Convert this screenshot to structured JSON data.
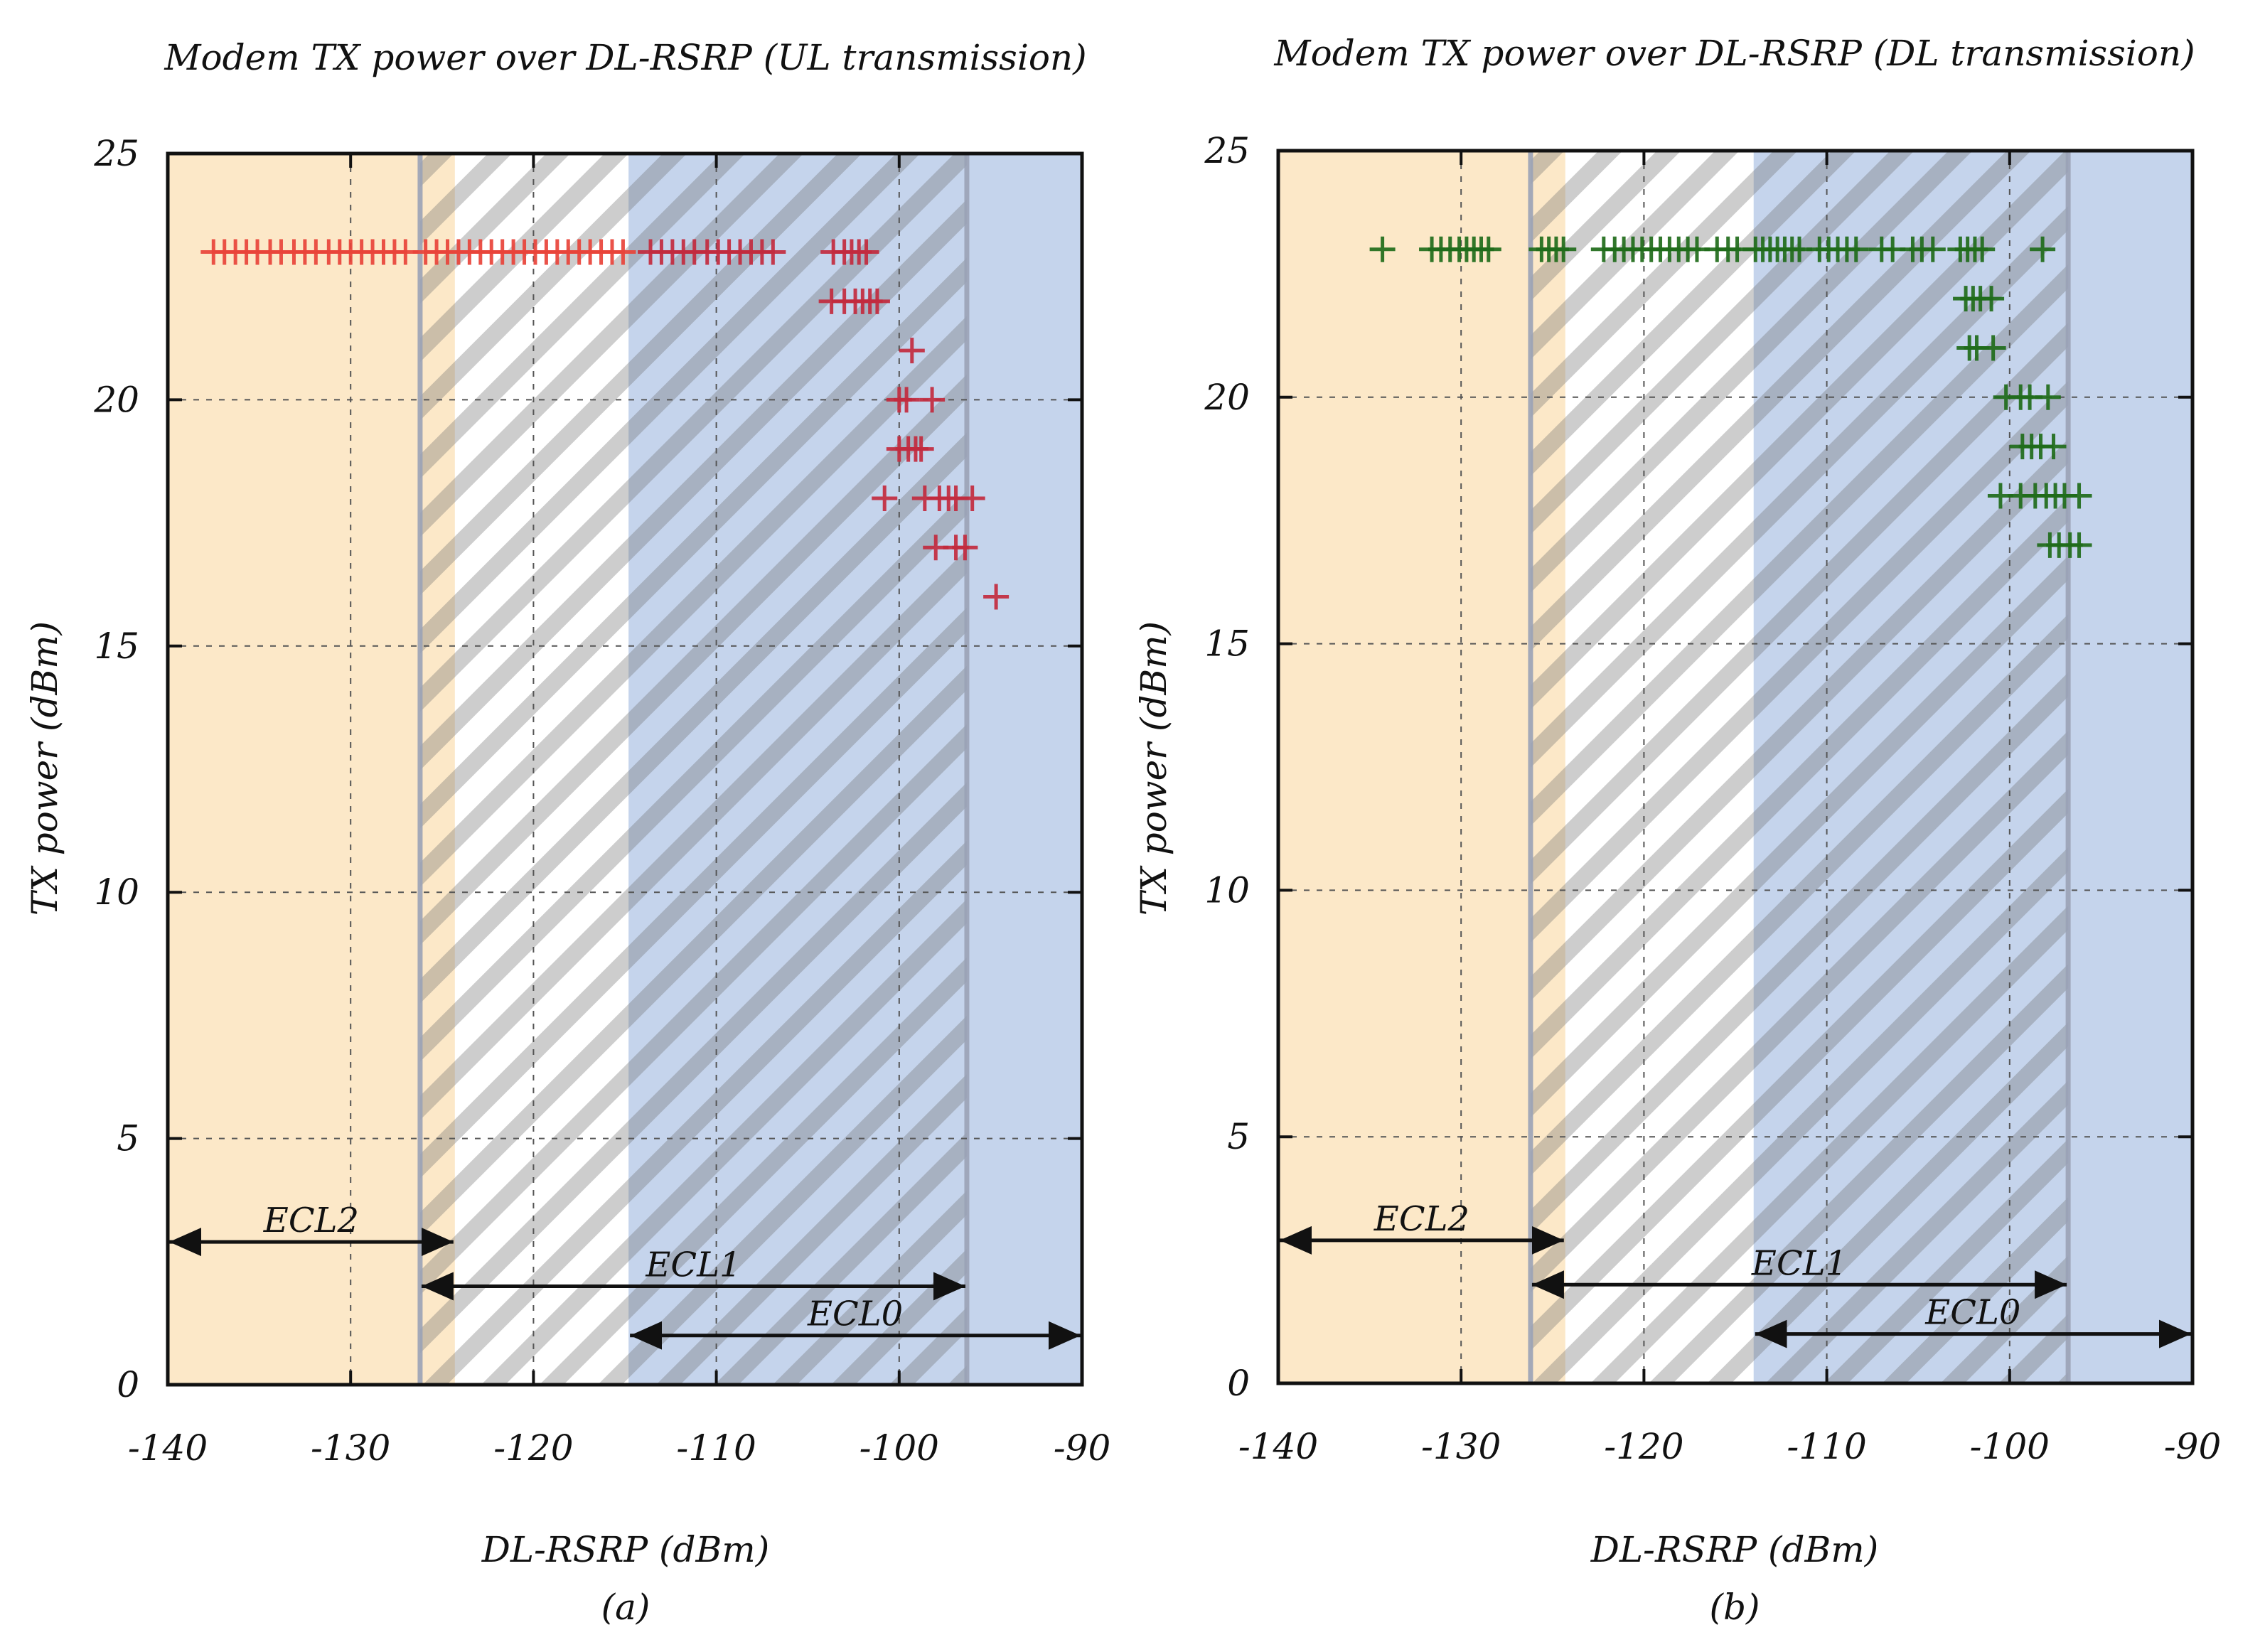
{
  "chart_data": [
    {
      "type": "scatter",
      "title": "Modem TX power over DL-RSRP (UL transmission)",
      "xlabel": "DL-RSRP (dBm)",
      "ylabel": "TX power (dBm)",
      "caption": "(a)",
      "xlim": [
        -140,
        -90
      ],
      "ylim": [
        0,
        25
      ],
      "xticks": [
        "-140",
        "-130",
        "-120",
        "-110",
        "-100",
        "-90"
      ],
      "yticks": [
        "0",
        "5",
        "10",
        "15",
        "20",
        "25"
      ],
      "grid": true,
      "marker": "+",
      "marker_color": "#e8433a",
      "marker_color_high": "#c22a3e",
      "ecl_regions": [
        {
          "name": "ECL2",
          "from": -140,
          "to": -124.3,
          "color": "#fce8c8"
        },
        {
          "name": "ECL1",
          "from": -126.2,
          "to": -96.3,
          "color": "#cccccc",
          "hatched": true
        },
        {
          "name": "ECL0",
          "from": -114.8,
          "to": -90,
          "color": "#c5d4ec"
        }
      ],
      "series": [
        {
          "name": "UL transmission",
          "points": [
            [
              -137.5,
              23
            ],
            [
              -136.9,
              23
            ],
            [
              -136.3,
              23
            ],
            [
              -135.7,
              23
            ],
            [
              -135.1,
              23
            ],
            [
              -134.4,
              23
            ],
            [
              -133.8,
              23
            ],
            [
              -133.1,
              23
            ],
            [
              -132.5,
              23
            ],
            [
              -131.9,
              23
            ],
            [
              -131.2,
              23
            ],
            [
              -130.6,
              23
            ],
            [
              -130.0,
              23
            ],
            [
              -129.4,
              23
            ],
            [
              -128.8,
              23
            ],
            [
              -128.2,
              23
            ],
            [
              -127.6,
              23
            ],
            [
              -127.0,
              23
            ],
            [
              -125.9,
              23
            ],
            [
              -125.3,
              23
            ],
            [
              -124.7,
              23
            ],
            [
              -124.1,
              23
            ],
            [
              -123.5,
              23
            ],
            [
              -122.9,
              23
            ],
            [
              -122.3,
              23
            ],
            [
              -121.7,
              23
            ],
            [
              -121.1,
              23
            ],
            [
              -120.5,
              23
            ],
            [
              -119.9,
              23
            ],
            [
              -119.3,
              23
            ],
            [
              -118.7,
              23
            ],
            [
              -118.1,
              23
            ],
            [
              -117.5,
              23
            ],
            [
              -116.9,
              23
            ],
            [
              -116.3,
              23
            ],
            [
              -115.7,
              23
            ],
            [
              -115.1,
              23
            ],
            [
              -113.6,
              23
            ],
            [
              -113.0,
              23
            ],
            [
              -112.4,
              23
            ],
            [
              -111.8,
              23
            ],
            [
              -111.2,
              23
            ],
            [
              -110.5,
              23
            ],
            [
              -109.9,
              23
            ],
            [
              -109.3,
              23
            ],
            [
              -108.7,
              23
            ],
            [
              -108.1,
              23
            ],
            [
              -107.5,
              23
            ],
            [
              -106.9,
              23
            ],
            [
              -103.6,
              23
            ],
            [
              -103.0,
              23
            ],
            [
              -102.6,
              23
            ],
            [
              -102.2,
              23
            ],
            [
              -101.8,
              23
            ],
            [
              -103.7,
              22
            ],
            [
              -103.0,
              22
            ],
            [
              -102.4,
              22
            ],
            [
              -102.0,
              22
            ],
            [
              -101.6,
              22
            ],
            [
              -101.2,
              22
            ],
            [
              -99.3,
              21
            ],
            [
              -100.0,
              20
            ],
            [
              -99.6,
              20
            ],
            [
              -98.2,
              20
            ],
            [
              -100.0,
              19
            ],
            [
              -99.5,
              19
            ],
            [
              -99.1,
              19
            ],
            [
              -98.8,
              19
            ],
            [
              -100.8,
              18
            ],
            [
              -98.6,
              18
            ],
            [
              -97.8,
              18
            ],
            [
              -97.3,
              18
            ],
            [
              -96.9,
              18
            ],
            [
              -96.0,
              18
            ],
            [
              -98.0,
              17
            ],
            [
              -96.9,
              17
            ],
            [
              -96.4,
              17
            ],
            [
              -94.7,
              16
            ]
          ]
        }
      ],
      "annotations": [
        {
          "text": "ECL2",
          "from": -140,
          "to": -124.3,
          "y": 2.9
        },
        {
          "text": "ECL1",
          "from": -126.2,
          "to": -96.3,
          "y": 2.0
        },
        {
          "text": "ECL0",
          "from": -114.8,
          "to": -90,
          "y": 1.0
        }
      ]
    },
    {
      "type": "scatter",
      "title": "Modem TX power over DL-RSRP (DL transmission)",
      "xlabel": "DL-RSRP (dBm)",
      "ylabel": "TX power (dBm)",
      "caption": "(b)",
      "xlim": [
        -140,
        -90
      ],
      "ylim": [
        0,
        25
      ],
      "xticks": [
        "-140",
        "-130",
        "-120",
        "-110",
        "-100",
        "-90"
      ],
      "yticks": [
        "0",
        "5",
        "10",
        "15",
        "20",
        "25"
      ],
      "grid": true,
      "marker": "+",
      "marker_color": "#1f6b1a",
      "marker_color_high": "#1f6b1a",
      "ecl_regions": [
        {
          "name": "ECL2",
          "from": -140,
          "to": -124.3,
          "color": "#fce8c8"
        },
        {
          "name": "ECL1",
          "from": -126.2,
          "to": -96.8,
          "color": "#cccccc",
          "hatched": true
        },
        {
          "name": "ECL0",
          "from": -114.0,
          "to": -90,
          "color": "#c5d4ec"
        }
      ],
      "series": [
        {
          "name": "DL transmission",
          "points": [
            [
              -134.3,
              23
            ],
            [
              -131.6,
              23
            ],
            [
              -131.1,
              23
            ],
            [
              -130.6,
              23
            ],
            [
              -130.1,
              23
            ],
            [
              -129.7,
              23
            ],
            [
              -129.3,
              23
            ],
            [
              -128.9,
              23
            ],
            [
              -128.5,
              23
            ],
            [
              -125.6,
              23
            ],
            [
              -125.2,
              23
            ],
            [
              -124.8,
              23
            ],
            [
              -124.4,
              23
            ],
            [
              -122.2,
              23
            ],
            [
              -121.6,
              23
            ],
            [
              -121.1,
              23
            ],
            [
              -120.6,
              23
            ],
            [
              -120.1,
              23
            ],
            [
              -119.6,
              23
            ],
            [
              -119.1,
              23
            ],
            [
              -118.6,
              23
            ],
            [
              -118.1,
              23
            ],
            [
              -117.6,
              23
            ],
            [
              -117.1,
              23
            ],
            [
              -116.0,
              23
            ],
            [
              -115.4,
              23
            ],
            [
              -114.9,
              23
            ],
            [
              -113.9,
              23
            ],
            [
              -113.5,
              23
            ],
            [
              -113.1,
              23
            ],
            [
              -112.7,
              23
            ],
            [
              -112.3,
              23
            ],
            [
              -111.9,
              23
            ],
            [
              -111.5,
              23
            ],
            [
              -110.4,
              23
            ],
            [
              -109.9,
              23
            ],
            [
              -109.4,
              23
            ],
            [
              -108.9,
              23
            ],
            [
              -108.4,
              23
            ],
            [
              -107.0,
              23
            ],
            [
              -106.4,
              23
            ],
            [
              -105.3,
              23
            ],
            [
              -104.8,
              23
            ],
            [
              -104.2,
              23
            ],
            [
              -102.7,
              23
            ],
            [
              -102.3,
              23
            ],
            [
              -101.9,
              23
            ],
            [
              -101.5,
              23
            ],
            [
              -98.2,
              23
            ],
            [
              -102.4,
              22
            ],
            [
              -102.0,
              22
            ],
            [
              -101.6,
              22
            ],
            [
              -101.0,
              22
            ],
            [
              -102.2,
              21
            ],
            [
              -101.8,
              21
            ],
            [
              -100.9,
              21
            ],
            [
              -100.2,
              20
            ],
            [
              -99.4,
              20
            ],
            [
              -98.9,
              20
            ],
            [
              -97.9,
              20
            ],
            [
              -99.3,
              19
            ],
            [
              -98.8,
              19
            ],
            [
              -98.3,
              19
            ],
            [
              -97.6,
              19
            ],
            [
              -100.5,
              18
            ],
            [
              -99.4,
              18
            ],
            [
              -98.6,
              18
            ],
            [
              -98.0,
              18
            ],
            [
              -97.5,
              18
            ],
            [
              -97.0,
              18
            ],
            [
              -96.2,
              18
            ],
            [
              -97.8,
              17
            ],
            [
              -97.3,
              17
            ],
            [
              -96.7,
              17
            ],
            [
              -96.2,
              17
            ]
          ]
        }
      ],
      "annotations": [
        {
          "text": "ECL2",
          "from": -140,
          "to": -124.3,
          "y": 2.9
        },
        {
          "text": "ECL1",
          "from": -126.2,
          "to": -96.8,
          "y": 2.0
        },
        {
          "text": "ECL0",
          "from": -114.0,
          "to": -90,
          "y": 1.0
        }
      ]
    }
  ]
}
